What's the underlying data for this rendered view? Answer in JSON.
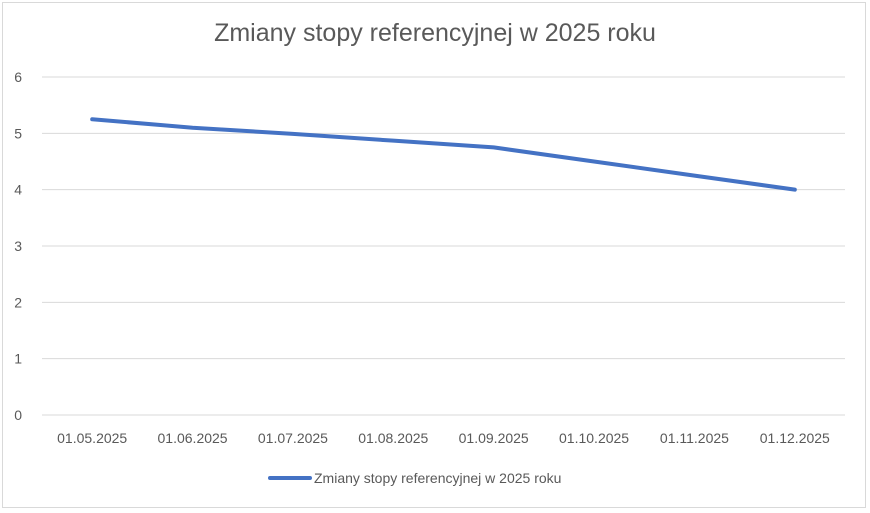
{
  "chart_data": {
    "type": "line",
    "title": "Zmiany stopy referencyjnej w 2025 roku",
    "xlabel": "",
    "ylabel": "",
    "categories": [
      "01.05.2025",
      "01.06.2025",
      "01.07.2025",
      "01.08.2025",
      "01.09.2025",
      "01.10.2025",
      "01.11.2025",
      "01.12.2025"
    ],
    "series": [
      {
        "name": "Zmiany stopy referencyjnej w 2025 roku",
        "color": "#4472c4",
        "values": [
          5.25,
          5.1,
          4.99,
          4.87,
          4.75,
          4.5,
          4.25,
          4.0
        ]
      }
    ],
    "ylim": [
      0,
      6
    ],
    "yticks": [
      "0",
      "1",
      "2",
      "3",
      "4",
      "5",
      "6"
    ],
    "grid": true,
    "legend_position": "bottom"
  }
}
